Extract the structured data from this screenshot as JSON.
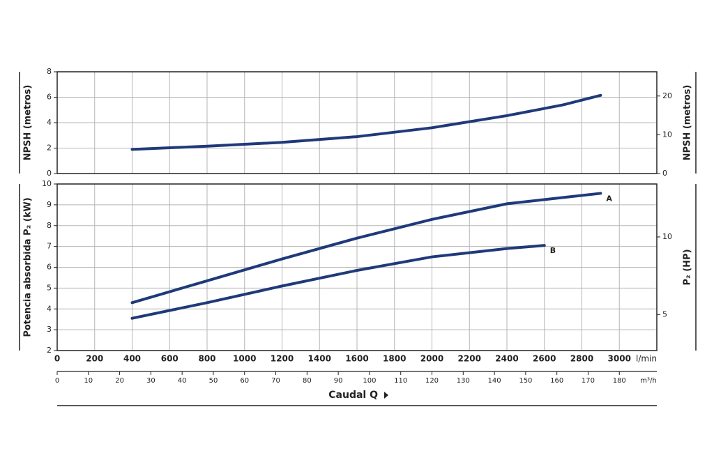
{
  "chart_data": [
    {
      "type": "line",
      "y_label": "NPSH (metros)",
      "y2_label": "NPSH (metros)",
      "xlim": [
        0,
        3200
      ],
      "ylim": [
        0,
        8
      ],
      "yticks": [
        0,
        2,
        4,
        6,
        8
      ],
      "y2lim": [
        0,
        26.25
      ],
      "y2ticks": [
        0,
        10,
        20
      ],
      "grid": true,
      "series": [
        {
          "color": "#1f3a7a",
          "x": [
            400,
            800,
            1200,
            1600,
            2000,
            2400,
            2700,
            2900
          ],
          "values": [
            1.9,
            2.15,
            2.45,
            2.9,
            3.6,
            4.55,
            5.4,
            6.15
          ]
        }
      ]
    },
    {
      "type": "line",
      "y_label": "Potencia absorbida P₂ (kW)",
      "y2_label": "P₂ (HP)",
      "x_label": "l/min",
      "x2_label": "m³/h",
      "x_title": "Caudal Q",
      "xlim": [
        0,
        3200
      ],
      "xticks": [
        0,
        200,
        400,
        600,
        800,
        1000,
        1200,
        1400,
        1600,
        1800,
        2000,
        2200,
        2400,
        2600,
        2800,
        3000
      ],
      "x2lim": [
        0,
        192
      ],
      "x2ticks": [
        0,
        10,
        20,
        30,
        40,
        50,
        60,
        70,
        80,
        90,
        100,
        110,
        120,
        130,
        140,
        150,
        160,
        170,
        180
      ],
      "ylim": [
        2,
        10
      ],
      "yticks": [
        2,
        3,
        4,
        5,
        6,
        7,
        8,
        9,
        10
      ],
      "y2lim": [
        2.68,
        13.41
      ],
      "y2ticks": [
        5,
        10
      ],
      "grid": true,
      "series": [
        {
          "name": "A",
          "color": "#1f3a7a",
          "x": [
            400,
            800,
            1200,
            1600,
            2000,
            2400,
            2700,
            2900
          ],
          "values": [
            4.3,
            5.35,
            6.4,
            7.4,
            8.3,
            9.05,
            9.35,
            9.55
          ]
        },
        {
          "name": "B",
          "color": "#1f3a7a",
          "x": [
            400,
            800,
            1200,
            1600,
            2000,
            2400,
            2600
          ],
          "values": [
            3.55,
            4.3,
            5.1,
            5.85,
            6.5,
            6.9,
            7.05
          ]
        }
      ]
    }
  ]
}
